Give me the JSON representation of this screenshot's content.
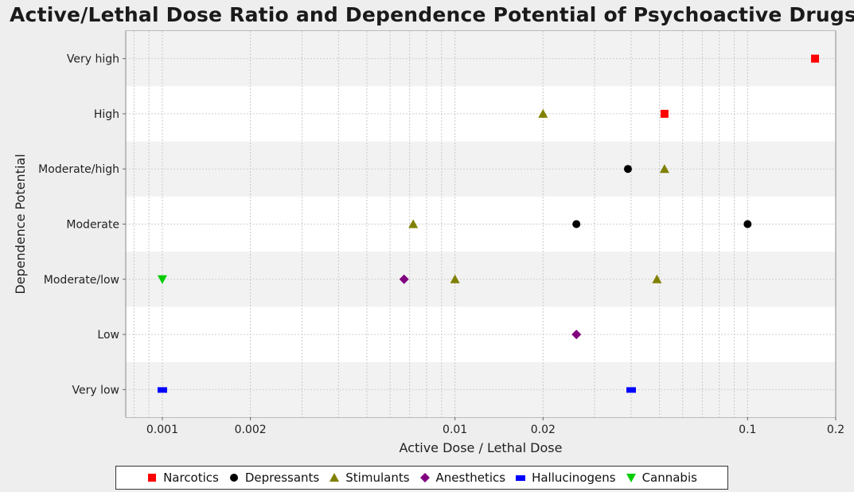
{
  "chart_data": {
    "type": "scatter",
    "title": "Active/Lethal Dose Ratio and Dependence Potential of Psychoactive Drugs",
    "xlabel": "Active Dose / Lethal Dose",
    "ylabel": "Dependence Potential",
    "xscale": "log",
    "xlim": [
      0.00075,
      0.2
    ],
    "x_ticks": [
      {
        "value": 0.001,
        "label": "0.001"
      },
      {
        "value": 0.002,
        "label": "0.002"
      },
      {
        "value": 0.01,
        "label": "0.01"
      },
      {
        "value": 0.02,
        "label": "0.02"
      },
      {
        "value": 0.1,
        "label": "0.1"
      },
      {
        "value": 0.2,
        "label": "0.2"
      }
    ],
    "y_categories": [
      "Very low",
      "Low",
      "Moderate/low",
      "Moderate",
      "Moderate/high",
      "High",
      "Very high"
    ],
    "grid": true,
    "legend_position": "bottom",
    "series": [
      {
        "name": "Narcotics",
        "marker": "square",
        "color": "#ff0000",
        "points": [
          {
            "x": 0.17,
            "y": "Very high"
          },
          {
            "x": 0.052,
            "y": "High"
          }
        ]
      },
      {
        "name": "Depressants",
        "marker": "circle",
        "color": "#000000",
        "points": [
          {
            "x": 0.039,
            "y": "Moderate/high"
          },
          {
            "x": 0.026,
            "y": "Moderate"
          },
          {
            "x": 0.1,
            "y": "Moderate"
          }
        ]
      },
      {
        "name": "Stimulants",
        "marker": "triangle-up",
        "color": "#808000",
        "points": [
          {
            "x": 0.02,
            "y": "High"
          },
          {
            "x": 0.052,
            "y": "Moderate/high"
          },
          {
            "x": 0.0072,
            "y": "Moderate"
          },
          {
            "x": 0.01,
            "y": "Moderate/low"
          },
          {
            "x": 0.049,
            "y": "Moderate/low"
          }
        ]
      },
      {
        "name": "Anesthetics",
        "marker": "diamond",
        "color": "#800080",
        "points": [
          {
            "x": 0.0067,
            "y": "Moderate/low"
          },
          {
            "x": 0.026,
            "y": "Low"
          }
        ]
      },
      {
        "name": "Hallucinogens",
        "marker": "rect",
        "color": "#0000ff",
        "points": [
          {
            "x": 0.001,
            "y": "Very low"
          },
          {
            "x": 0.04,
            "y": "Very low"
          }
        ]
      },
      {
        "name": "Cannabis",
        "marker": "triangle-down",
        "color": "#00cc00",
        "points": [
          {
            "x": 0.001,
            "y": "Moderate/low"
          }
        ]
      }
    ]
  }
}
